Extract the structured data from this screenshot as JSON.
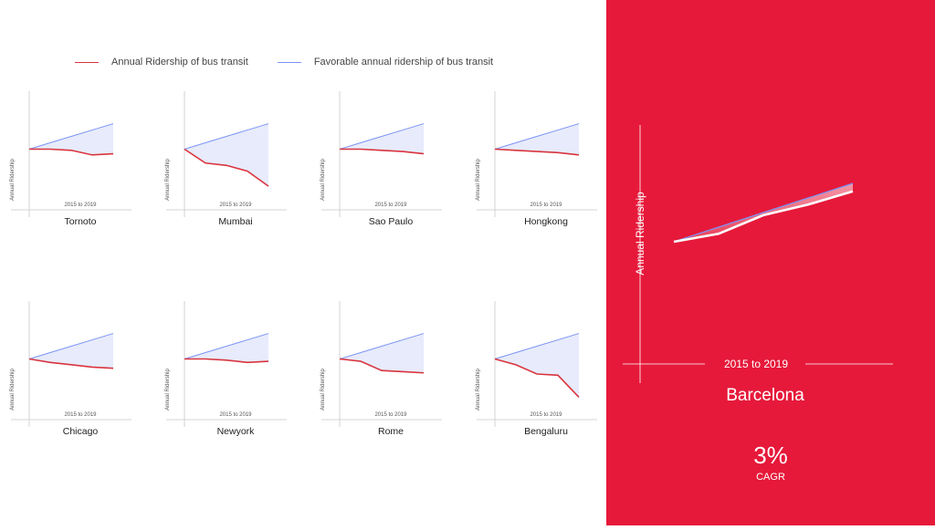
{
  "legend": [
    {
      "label": "Annual Ridership of bus transit",
      "color": "#d9343e"
    },
    {
      "label": "Favorable annual ridership of bus transit",
      "color": "#7b93f5"
    }
  ],
  "colors": {
    "actual": "#d9343e",
    "favorable": "#7b93f5",
    "favorable_fill": "#e7ebfb",
    "panel_bg": "#e6193a"
  },
  "chart_data": [
    {
      "type": "line",
      "title": "Tornoto",
      "xlabel": "2015  to  2019",
      "ylabel": "Annual Ridership",
      "x": [
        2015,
        2016,
        2017,
        2018,
        2019
      ],
      "ylim": [
        0,
        1
      ],
      "series": [
        {
          "name": "Annual Ridership of bus transit",
          "values": [
            0.5,
            0.5,
            0.49,
            0.45,
            0.46
          ]
        },
        {
          "name": "Favorable annual ridership of bus transit",
          "values": [
            0.5,
            0.555,
            0.61,
            0.665,
            0.72
          ]
        }
      ]
    },
    {
      "type": "line",
      "title": "Mumbai",
      "xlabel": "2015  to  2019",
      "ylabel": "Annual Ridership",
      "x": [
        2015,
        2016,
        2017,
        2018,
        2019
      ],
      "ylim": [
        0,
        1
      ],
      "series": [
        {
          "name": "Annual Ridership of bus transit",
          "values": [
            0.5,
            0.38,
            0.36,
            0.31,
            0.18
          ]
        },
        {
          "name": "Favorable annual ridership of bus transit",
          "values": [
            0.5,
            0.555,
            0.61,
            0.665,
            0.72
          ]
        }
      ]
    },
    {
      "type": "line",
      "title": "Sao Paulo",
      "xlabel": "2015  to  2019",
      "ylabel": "Annual Ridership",
      "x": [
        2015,
        2016,
        2017,
        2018,
        2019
      ],
      "ylim": [
        0,
        1
      ],
      "series": [
        {
          "name": "Annual Ridership of bus transit",
          "values": [
            0.5,
            0.5,
            0.49,
            0.48,
            0.46
          ]
        },
        {
          "name": "Favorable annual ridership of bus transit",
          "values": [
            0.5,
            0.555,
            0.61,
            0.665,
            0.72
          ]
        }
      ]
    },
    {
      "type": "line",
      "title": "Hongkong",
      "xlabel": "2015  to  2019",
      "ylabel": "Annual Ridership",
      "x": [
        2015,
        2016,
        2017,
        2018,
        2019
      ],
      "ylim": [
        0,
        1
      ],
      "series": [
        {
          "name": "Annual Ridership of bus transit",
          "values": [
            0.5,
            0.49,
            0.48,
            0.47,
            0.45
          ]
        },
        {
          "name": "Favorable annual ridership of bus transit",
          "values": [
            0.5,
            0.555,
            0.61,
            0.665,
            0.72
          ]
        }
      ]
    },
    {
      "type": "line",
      "title": "Chicago",
      "xlabel": "2015  to  2019",
      "ylabel": "Annual Ridership",
      "x": [
        2015,
        2016,
        2017,
        2018,
        2019
      ],
      "ylim": [
        0,
        1
      ],
      "series": [
        {
          "name": "Annual Ridership of bus transit",
          "values": [
            0.5,
            0.47,
            0.45,
            0.43,
            0.42
          ]
        },
        {
          "name": "Favorable annual ridership of bus transit",
          "values": [
            0.5,
            0.555,
            0.61,
            0.665,
            0.72
          ]
        }
      ]
    },
    {
      "type": "line",
      "title": "Newyork",
      "xlabel": "2015  to  2019",
      "ylabel": "Annual Ridership",
      "x": [
        2015,
        2016,
        2017,
        2018,
        2019
      ],
      "ylim": [
        0,
        1
      ],
      "series": [
        {
          "name": "Annual Ridership of bus transit",
          "values": [
            0.5,
            0.5,
            0.49,
            0.47,
            0.48
          ]
        },
        {
          "name": "Favorable annual ridership of bus transit",
          "values": [
            0.5,
            0.555,
            0.61,
            0.665,
            0.72
          ]
        }
      ]
    },
    {
      "type": "line",
      "title": "Rome",
      "xlabel": "2015  to  2019",
      "ylabel": "Annual Ridership",
      "x": [
        2015,
        2016,
        2017,
        2018,
        2019
      ],
      "ylim": [
        0,
        1
      ],
      "series": [
        {
          "name": "Annual Ridership of bus transit",
          "values": [
            0.5,
            0.48,
            0.4,
            0.39,
            0.38
          ]
        },
        {
          "name": "Favorable annual ridership of bus transit",
          "values": [
            0.5,
            0.555,
            0.61,
            0.665,
            0.72
          ]
        }
      ]
    },
    {
      "type": "line",
      "title": "Bengaluru",
      "xlabel": "2015  to  2019",
      "ylabel": "Annual Ridership",
      "x": [
        2015,
        2016,
        2017,
        2018,
        2019
      ],
      "ylim": [
        0,
        1
      ],
      "series": [
        {
          "name": "Annual Ridership of bus transit",
          "values": [
            0.5,
            0.45,
            0.37,
            0.36,
            0.17
          ]
        },
        {
          "name": "Favorable annual ridership of bus transit",
          "values": [
            0.5,
            0.555,
            0.61,
            0.665,
            0.72
          ]
        }
      ]
    },
    {
      "type": "line",
      "title": "Barcelona",
      "xlabel": "2015  to  2019",
      "ylabel": "Annual Ridership",
      "x": [
        2015,
        2016,
        2017,
        2018,
        2019
      ],
      "ylim": [
        0,
        1
      ],
      "series": [
        {
          "name": "Annual Ridership of bus transit",
          "values": [
            0.5,
            0.53,
            0.6,
            0.64,
            0.69
          ]
        },
        {
          "name": "Favorable annual ridership of bus transit",
          "values": [
            0.5,
            0.555,
            0.61,
            0.665,
            0.72
          ]
        }
      ]
    }
  ],
  "highlight": {
    "value": "3%",
    "label": "CAGR"
  }
}
